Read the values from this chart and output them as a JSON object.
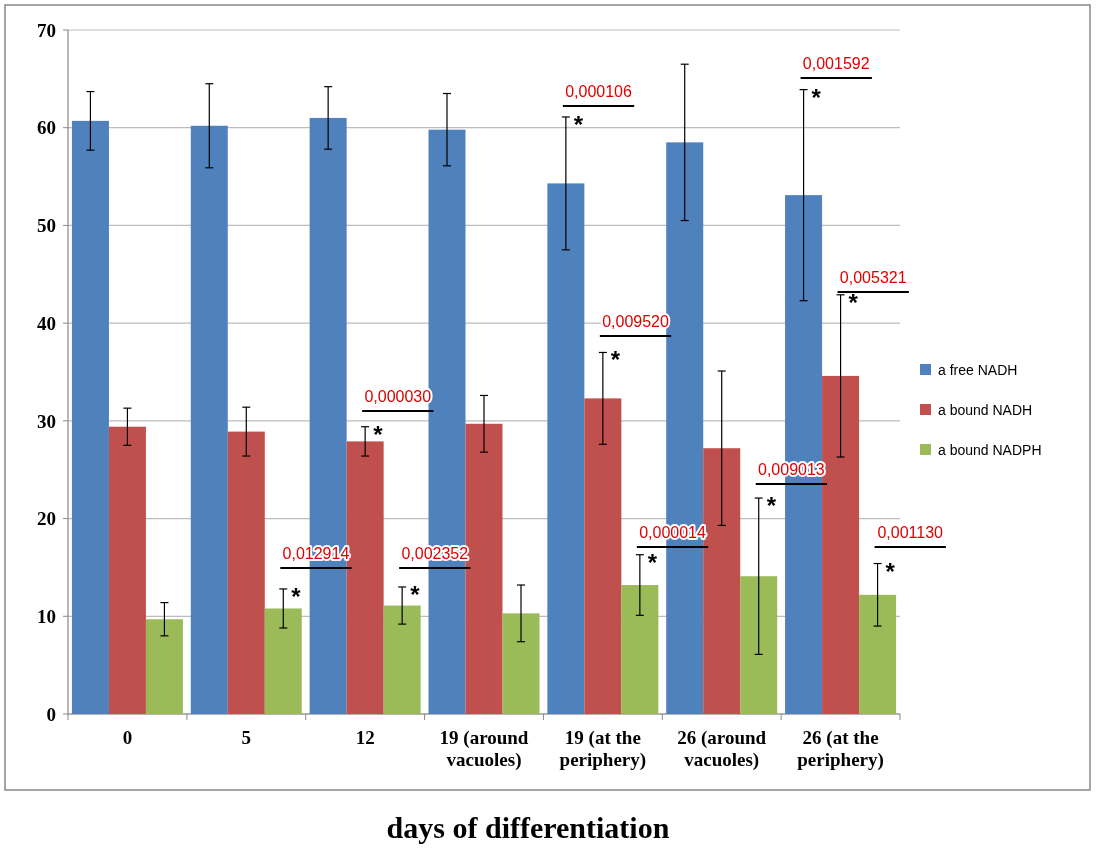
{
  "chart_data": {
    "type": "bar",
    "xlabel": "days of differentiation",
    "categories": [
      "0",
      "5",
      "12",
      "19 (around vacuoles)",
      "19 (at the periphery)",
      "26 (around vacuoles)",
      "26 (at the periphery)"
    ],
    "series": [
      {
        "name": "a free NADH",
        "color": "#4f81bd",
        "values": [
          60.7,
          60.2,
          61.0,
          59.8,
          54.3,
          58.5,
          53.1
        ],
        "errors": [
          3.0,
          4.3,
          3.2,
          3.7,
          6.8,
          8.0,
          10.8
        ]
      },
      {
        "name": "a bound NADH",
        "color": "#c0504d",
        "values": [
          29.4,
          28.9,
          27.9,
          29.7,
          32.3,
          27.2,
          34.6
        ],
        "errors": [
          1.9,
          2.5,
          1.5,
          2.9,
          4.7,
          7.9,
          8.3
        ]
      },
      {
        "name": "a bound NADPH",
        "color": "#9bbb59",
        "values": [
          9.7,
          10.8,
          11.1,
          10.3,
          13.2,
          14.1,
          12.2
        ],
        "errors": [
          1.7,
          2.0,
          1.9,
          2.9,
          3.1,
          8.0,
          3.2
        ]
      }
    ],
    "ylim": [
      0,
      70
    ],
    "yticks": [
      0,
      10,
      20,
      30,
      40,
      50,
      60,
      70
    ],
    "grid": "y",
    "legend": "right",
    "annotations": [
      "0,012914",
      "0,000030",
      "0,002352",
      "0,000106",
      "0,009520",
      "0,000014",
      "0,009013",
      "0,001592",
      "0,005321",
      "0,001130",
      "*",
      "*",
      "*",
      "*",
      "*",
      "*",
      "*",
      "*",
      "*",
      "*"
    ]
  }
}
